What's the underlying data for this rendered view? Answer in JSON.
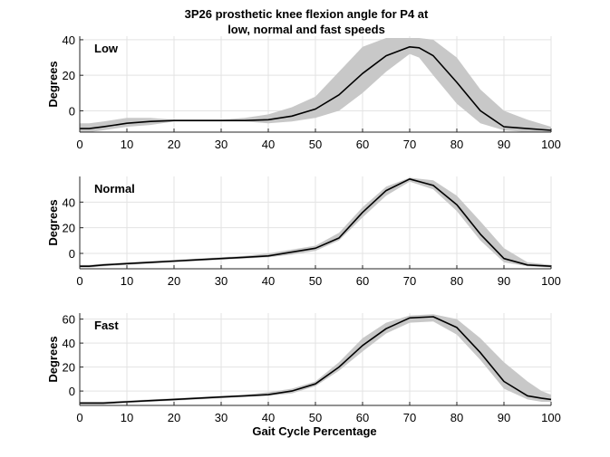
{
  "title_lines": [
    "3P26 prosthetic knee flexion angle for P4 at",
    "low, normal and fast speeds"
  ],
  "xlabel": "Gait Cycle Percentage",
  "colors": {
    "mean_line": "#000000",
    "band": "#c8c8c8",
    "grid": "#e3e3e3",
    "axis": "#262626"
  },
  "chart_data": [
    {
      "type": "line",
      "panel_label": "Low",
      "ylabel": "Degrees",
      "xlim": [
        0,
        100
      ],
      "ylim": [
        -12,
        42
      ],
      "grid": true,
      "x_ticks": [
        0,
        10,
        20,
        30,
        40,
        50,
        60,
        70,
        80,
        90,
        100
      ],
      "y_ticks": [
        0,
        20,
        40
      ],
      "x": [
        0,
        2,
        5,
        10,
        15,
        20,
        25,
        30,
        35,
        40,
        45,
        50,
        55,
        60,
        65,
        70,
        72,
        75,
        80,
        85,
        90,
        95,
        100
      ],
      "mean": [
        -10,
        -10,
        -9,
        -7,
        -6,
        -5.5,
        -5.5,
        -5.5,
        -5.5,
        -5,
        -3,
        1,
        9,
        21,
        31,
        36,
        35.5,
        31,
        16,
        0,
        -9,
        -10,
        -11
      ],
      "band_upper": [
        -7,
        -7,
        -6,
        -4,
        -4,
        -5,
        -5,
        -5,
        -4,
        -2,
        2,
        8,
        22,
        36,
        41,
        41,
        41,
        40,
        30,
        12,
        0,
        -5,
        -9
      ],
      "band_lower": [
        -12,
        -12,
        -11,
        -9,
        -8,
        -6,
        -6,
        -6,
        -6,
        -7,
        -6,
        -4,
        0,
        10,
        22,
        32,
        30,
        20,
        4,
        -7,
        -11,
        -12,
        -12
      ]
    },
    {
      "type": "line",
      "panel_label": "Normal",
      "ylabel": "Degrees",
      "xlim": [
        0,
        100
      ],
      "ylim": [
        -12,
        60
      ],
      "grid": true,
      "x_ticks": [
        0,
        10,
        20,
        30,
        40,
        50,
        60,
        70,
        80,
        90,
        100
      ],
      "y_ticks": [
        0,
        20,
        40
      ],
      "x": [
        0,
        2,
        5,
        10,
        15,
        20,
        25,
        30,
        35,
        40,
        45,
        50,
        55,
        60,
        65,
        70,
        75,
        80,
        85,
        90,
        95,
        100
      ],
      "mean": [
        -10,
        -10,
        -9,
        -8,
        -7,
        -6,
        -5,
        -4,
        -3,
        -2,
        1,
        4,
        12,
        32,
        49,
        58,
        53,
        38,
        15,
        -4,
        -9,
        -10
      ],
      "band_upper": [
        -9,
        -9,
        -8,
        -7,
        -6,
        -5,
        -4,
        -3,
        -2,
        0,
        3,
        6,
        16,
        36,
        52,
        59,
        57,
        45,
        25,
        4,
        -7,
        -9
      ],
      "band_lower": [
        -11,
        -11,
        -10,
        -9,
        -8,
        -7,
        -6,
        -5,
        -4,
        -3,
        -1,
        2,
        10,
        28,
        45,
        56,
        50,
        33,
        10,
        -7,
        -10,
        -11
      ]
    },
    {
      "type": "line",
      "panel_label": "Fast",
      "ylabel": "Degrees",
      "xlim": [
        0,
        100
      ],
      "ylim": [
        -12,
        65
      ],
      "grid": true,
      "x_ticks": [
        0,
        10,
        20,
        30,
        40,
        50,
        60,
        70,
        80,
        90,
        100
      ],
      "y_ticks": [
        0,
        20,
        40,
        60
      ],
      "x": [
        0,
        2,
        5,
        10,
        15,
        20,
        25,
        30,
        35,
        40,
        45,
        50,
        55,
        60,
        65,
        70,
        75,
        80,
        85,
        90,
        95,
        98,
        100
      ],
      "mean": [
        -10,
        -10,
        -10,
        -9,
        -8,
        -7,
        -6,
        -5,
        -4,
        -3,
        0,
        6,
        20,
        38,
        52,
        61,
        62,
        53,
        32,
        8,
        -4,
        -6,
        -7
      ],
      "band_upper": [
        -9,
        -9,
        -9,
        -8,
        -7,
        -6,
        -5,
        -4,
        -3,
        -1,
        2,
        8,
        24,
        44,
        57,
        63,
        64,
        60,
        44,
        24,
        8,
        0,
        -3
      ],
      "band_lower": [
        -11,
        -11,
        -11,
        -10,
        -9,
        -8,
        -7,
        -6,
        -5,
        -4,
        -2,
        4,
        17,
        33,
        48,
        57,
        58,
        47,
        26,
        2,
        -7,
        -9,
        -9
      ]
    }
  ]
}
